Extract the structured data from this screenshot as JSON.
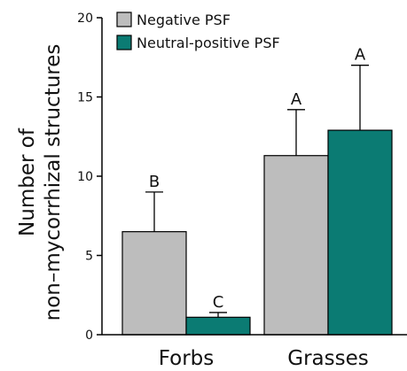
{
  "chart_data": {
    "type": "bar",
    "title": "",
    "xlabel": "",
    "ylabel": [
      "Number of",
      "non–mycorrhizal structures"
    ],
    "ylim": [
      0,
      20
    ],
    "yticks": [
      "0",
      "5",
      "10",
      "15",
      "20"
    ],
    "categories": [
      "Forbs",
      "Grasses"
    ],
    "legend_position": "top-left",
    "grid": false,
    "series": [
      {
        "name": "Negative PSF",
        "color": "#bdbdbd",
        "values": [
          6.5,
          11.3
        ],
        "errors": [
          2.5,
          2.9
        ],
        "significance": [
          "B",
          "A"
        ]
      },
      {
        "name": "Neutral-positive PSF",
        "color": "#0b7b73",
        "values": [
          1.1,
          12.9
        ],
        "errors": [
          0.3,
          4.1
        ],
        "significance": [
          "C",
          "A"
        ]
      }
    ]
  }
}
